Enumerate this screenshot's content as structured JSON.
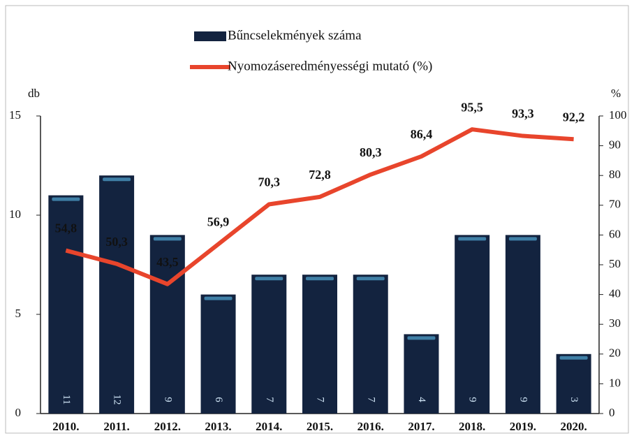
{
  "chart_data": {
    "type": "bar-line",
    "y_label": "db",
    "y2_label": "%",
    "categories": [
      "2010.",
      "2011.",
      "2012.",
      "2013.",
      "2014.",
      "2015.",
      "2016.",
      "2017.",
      "2018.",
      "2019.",
      "2020."
    ],
    "series": [
      {
        "name": "Bűncselekmények száma",
        "type": "bar",
        "axis": "y",
        "color": "#13233f",
        "values": [
          11,
          12,
          9,
          6,
          7,
          7,
          7,
          4,
          9,
          9,
          3
        ]
      },
      {
        "name": "Nyomozáseredményességi mutató (%)",
        "type": "line",
        "axis": "y2",
        "color": "#e8452c",
        "values": [
          54.8,
          50.3,
          43.5,
          56.9,
          70.3,
          72.8,
          80.3,
          86.4,
          95.5,
          93.3,
          92.2
        ],
        "value_labels": [
          "54,8",
          "50,3",
          "43,5",
          "56,9",
          "70,3",
          "72,8",
          "80,3",
          "86,4",
          "95,5",
          "93,3",
          "92,2"
        ]
      }
    ],
    "ylim": [
      0,
      15
    ],
    "yticks": [
      0,
      5,
      10,
      15
    ],
    "y2lim": [
      0,
      100
    ],
    "y2ticks": [
      0,
      10,
      20,
      30,
      40,
      50,
      60,
      70,
      80,
      90,
      100
    ]
  }
}
